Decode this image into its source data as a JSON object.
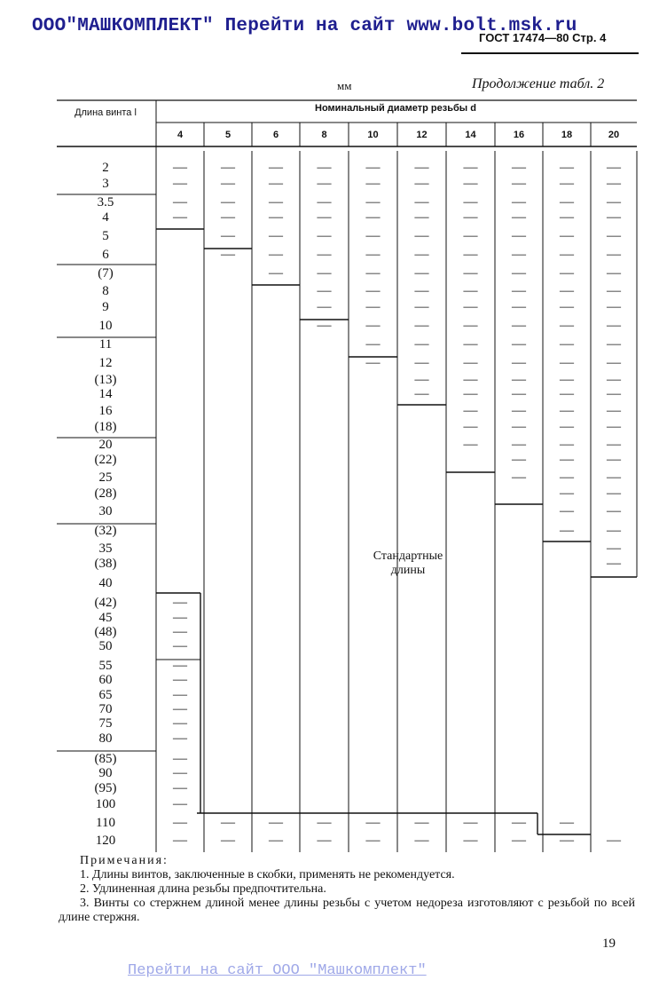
{
  "header": {
    "banner_link": "ООО\"МАШКОМПЛЕКТ\" Перейти на сайт www.bolt.msk.ru",
    "standard": "ГОСТ 17474—80 Стр. 4",
    "units": "мм",
    "continuation": "Продолжение табл. 2"
  },
  "table": {
    "row_header": "Длина винта l",
    "col_group_header": "Номинальный диаметр резьбы d",
    "diameters": [
      "4",
      "5",
      "6",
      "8",
      "10",
      "12",
      "14",
      "16",
      "18",
      "20"
    ],
    "lengths": [
      "2",
      "3",
      "3.5",
      "4",
      "5",
      "6",
      "(7)",
      "8",
      "9",
      "10",
      "11",
      "12",
      "(13)",
      "14",
      "16",
      "(18)",
      "20",
      "(22)",
      "25",
      "(28)",
      "30",
      "(32)",
      "35",
      "(38)",
      "40",
      "(42)",
      "45",
      "(48)",
      "50",
      "55",
      "60",
      "65",
      "70",
      "75",
      "80",
      "(85)",
      "90",
      "(95)",
      "100",
      "110",
      "120"
    ],
    "region_label": "Стандартные длины",
    "dash": "—"
  },
  "notes": {
    "title": "Примечания:",
    "items": [
      "1. Длины винтов, заключенные в скобки, применять не рекомендуется.",
      "2. Удлиненная длина резьбы предпочтительна.",
      "3. Винты со стержнем длиной менее длины резьбы с учетом недореза изготовляют с резьбой по всей длине стержня."
    ]
  },
  "page_number": "19",
  "footer_link": "Перейти на сайт ООО \"Машкомплект\""
}
